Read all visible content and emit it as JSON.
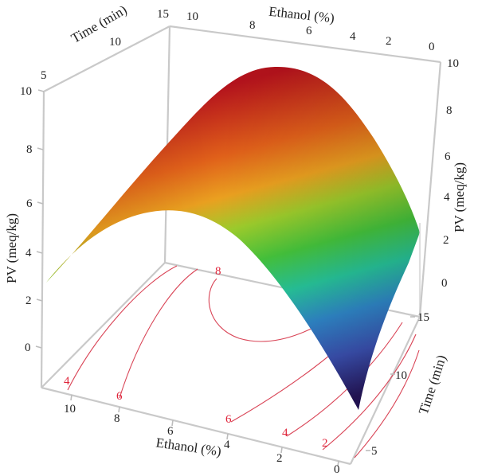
{
  "chart_data": {
    "type": "surface3d",
    "z_label": "PV (meq/kg)",
    "x_label": "Ethanol (%)",
    "y_label": "Time (min)",
    "x_ticks": [
      "10",
      "8",
      "6",
      "4",
      "2",
      "0"
    ],
    "y_ticks": [
      "5",
      "10",
      "15"
    ],
    "z_ticks": [
      "0",
      "2",
      "4",
      "6",
      "8",
      "10"
    ],
    "xlim": [
      0,
      10
    ],
    "ylim": [
      5,
      15
    ],
    "zlim": [
      -2,
      10
    ],
    "contour_levels": [
      "2",
      "4",
      "6",
      "8"
    ],
    "surface_samples": [
      {
        "ethanol": 10,
        "time": 5,
        "pv": 2.8
      },
      {
        "ethanol": 6,
        "time": 5,
        "pv": 5.7
      },
      {
        "ethanol": 1.5,
        "time": 5,
        "pv": -1.0
      },
      {
        "ethanol": 10,
        "time": 15,
        "pv": 2.8
      },
      {
        "ethanol": 6,
        "time": 15,
        "pv": 9.4
      },
      {
        "ethanol": 0,
        "time": 15,
        "pv": 2.5
      }
    ],
    "colormap": [
      "#2a1a6e",
      "#3a5fb8",
      "#2ec4a0",
      "#4cc63a",
      "#b8d028",
      "#f0a020",
      "#e05a18",
      "#b8141c"
    ]
  }
}
